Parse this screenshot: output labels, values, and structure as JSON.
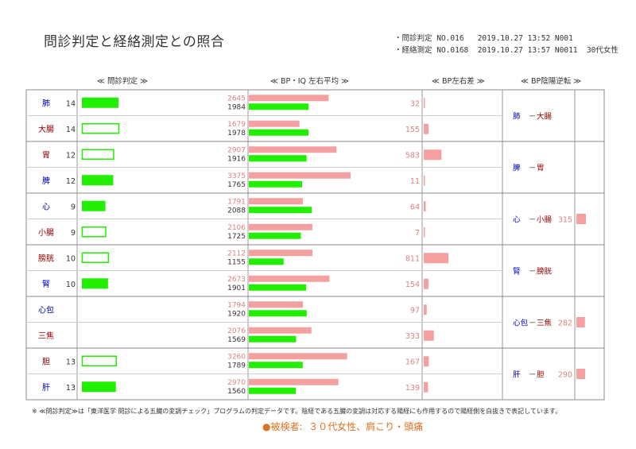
{
  "title": "問診判定と経絡測定との照合",
  "meta": [
    "・問診判定 NO.016   2019.10.27 13:52 N001",
    "・経絡測定 NO.0168  2019.10.27 13:57 N0011  30代女性"
  ],
  "headers": {
    "inquiry": "≪ 問診判定 ≫",
    "bp_iq": "≪ BP・IQ 左右平均 ≫",
    "bp_lr": "≪ BP左右差 ≫",
    "reversal": "≪ BP陰陽逆転 ≫"
  },
  "footnote": "※ ≪問診判定≫は「東洋医学 問診による五臓の変調チェック」プログラムの判定データです。陰経である五臓の変調は対応する陽経にも作用するので陽経側を白抜きで表記しています。",
  "patient": "●被検者:  ３０代女性、肩こり・頭痛",
  "colors": {
    "bar_green": "#22ee00",
    "bar_pink": "#f5a0a0",
    "yin_text": "#0000cc",
    "yang_text": "#990000",
    "num_pink": "#e08080"
  },
  "chart_data": {
    "type": "bar",
    "rows": [
      {
        "name": "肺",
        "yin": true,
        "inquiry": 14,
        "bp": 2645,
        "iq": 1984,
        "diff": 32
      },
      {
        "name": "大腸",
        "yin": false,
        "inquiry": 14,
        "bp": 1679,
        "iq": 1978,
        "diff": 155
      },
      {
        "name": "胃",
        "yin": false,
        "inquiry": 12,
        "bp": 2907,
        "iq": 1916,
        "diff": 583
      },
      {
        "name": "脾",
        "yin": true,
        "inquiry": 12,
        "bp": 3375,
        "iq": 1765,
        "diff": 11
      },
      {
        "name": "心",
        "yin": true,
        "inquiry": 9,
        "bp": 1791,
        "iq": 2088,
        "diff": 64
      },
      {
        "name": "小腸",
        "yin": false,
        "inquiry": 9,
        "bp": 2106,
        "iq": 1725,
        "diff": 7
      },
      {
        "name": "膀胱",
        "yin": false,
        "inquiry": 10,
        "bp": 2112,
        "iq": 1155,
        "diff": 811
      },
      {
        "name": "腎",
        "yin": true,
        "inquiry": 10,
        "bp": 2673,
        "iq": 1901,
        "diff": 154
      },
      {
        "name": "心包",
        "yin": true,
        "inquiry": null,
        "bp": 1794,
        "iq": 1920,
        "diff": 97
      },
      {
        "name": "三焦",
        "yin": false,
        "inquiry": null,
        "bp": 2076,
        "iq": 1569,
        "diff": 333
      },
      {
        "name": "胆",
        "yin": false,
        "inquiry": 13,
        "bp": 3260,
        "iq": 1789,
        "diff": 167
      },
      {
        "name": "肝",
        "yin": true,
        "inquiry": 13,
        "bp": 2970,
        "iq": 1560,
        "diff": 139
      }
    ],
    "reversal": [
      {
        "yin": "肺",
        "dash": "－",
        "yang": "大腸",
        "value": null
      },
      {
        "yin": "脾",
        "dash": "－",
        "yang": "胃",
        "value": null
      },
      {
        "yin": "心",
        "dash": "－",
        "yang": "小腸",
        "value": 315
      },
      {
        "yin": "腎",
        "dash": "－",
        "yang": "膀胱",
        "value": null
      },
      {
        "yin": "心包",
        "dash": "－",
        "yang": "三焦",
        "value": 282
      },
      {
        "yin": "肝",
        "dash": "－",
        "yang": "胆",
        "value": 290
      }
    ]
  }
}
